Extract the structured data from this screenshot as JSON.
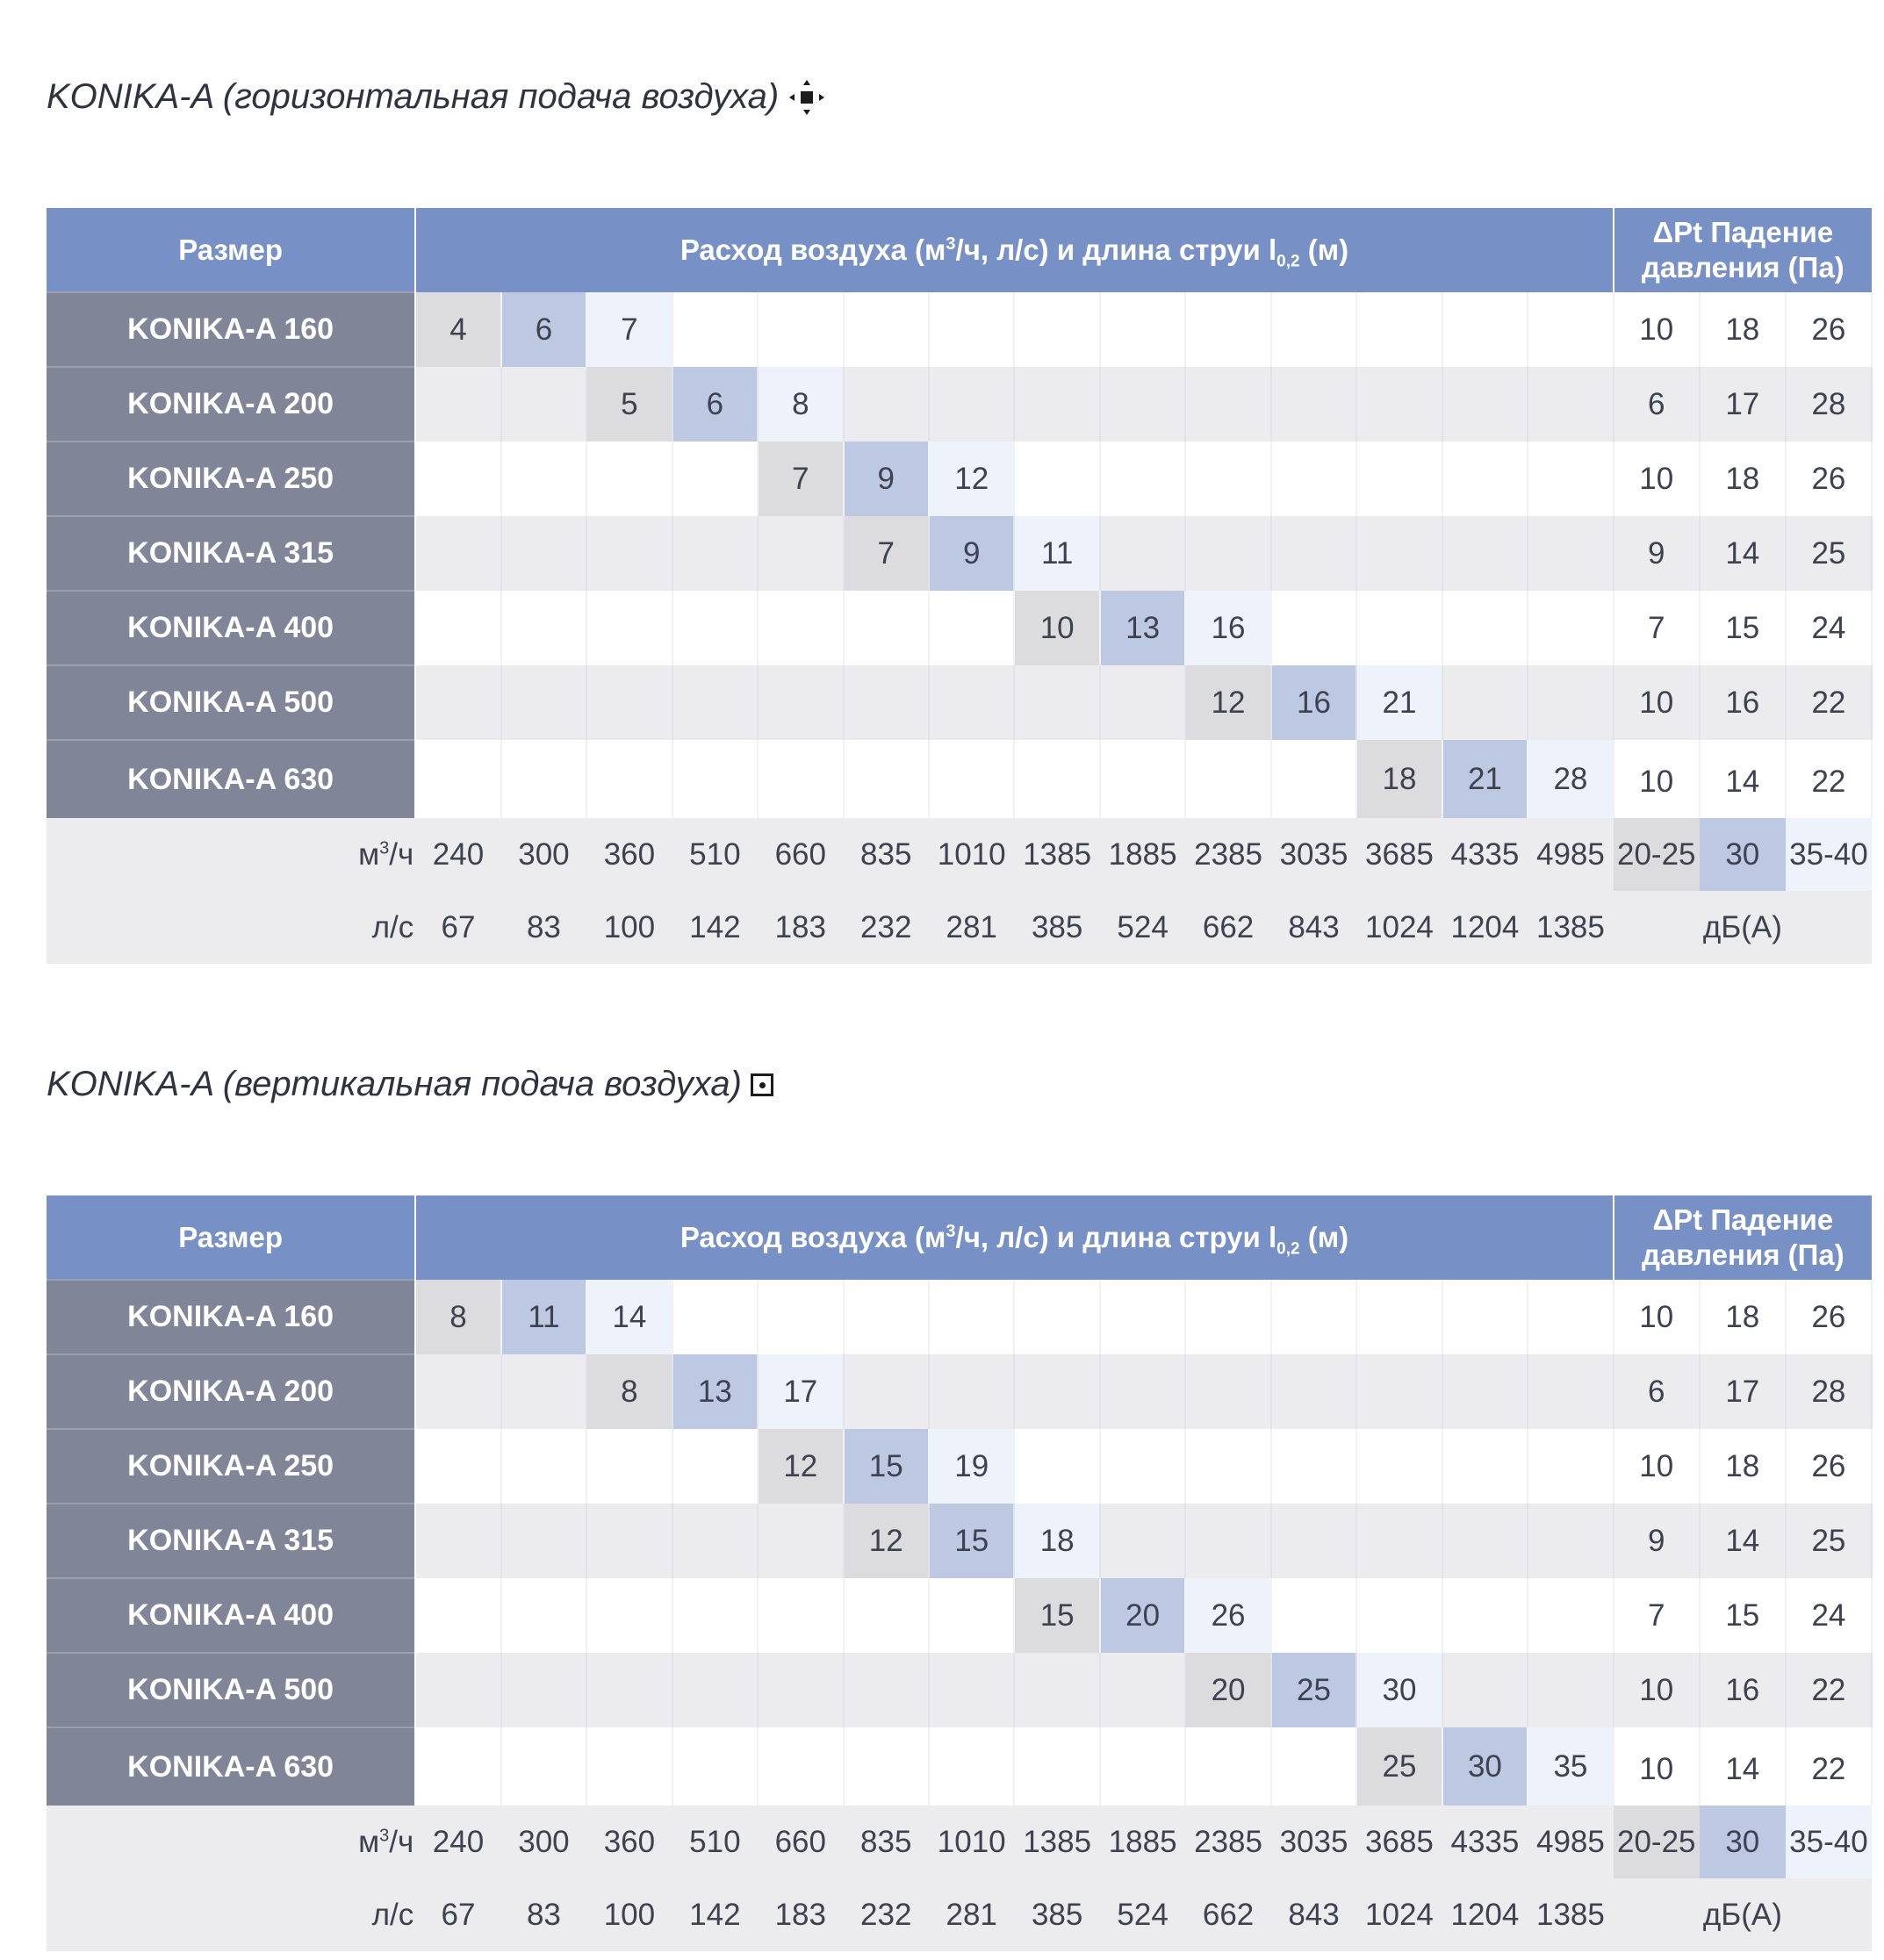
{
  "sections": [
    {
      "title": "KONIKA-A (горизонтальная подача воздуха)",
      "icon": "horizontal-supply-icon",
      "header": {
        "size": "Размер",
        "flow_pre": "Расход воздуха (м",
        "flow_sup": "3",
        "flow_mid": "/ч, л/с) и длина струи l",
        "flow_sub": "0,2",
        "flow_post": " (м)",
        "dp_line1": "ΔPt Падение",
        "dp_line2": "давления (Па)"
      },
      "rows": [
        {
          "name": "KONIKA-A 160",
          "start": 0,
          "values": [
            "4",
            "6",
            "7"
          ],
          "dp": [
            "10",
            "18",
            "26"
          ]
        },
        {
          "name": "KONIKA-A 200",
          "start": 2,
          "values": [
            "5",
            "6",
            "8"
          ],
          "dp": [
            "6",
            "17",
            "28"
          ]
        },
        {
          "name": "KONIKA-A 250",
          "start": 4,
          "values": [
            "7",
            "9",
            "12"
          ],
          "dp": [
            "10",
            "18",
            "26"
          ]
        },
        {
          "name": "KONIKA-A 315",
          "start": 5,
          "values": [
            "7",
            "9",
            "11"
          ],
          "dp": [
            "9",
            "14",
            "25"
          ]
        },
        {
          "name": "KONIKA-A 400",
          "start": 7,
          "values": [
            "10",
            "13",
            "16"
          ],
          "dp": [
            "7",
            "15",
            "24"
          ]
        },
        {
          "name": "KONIKA-A 500",
          "start": 9,
          "values": [
            "12",
            "16",
            "21"
          ],
          "dp": [
            "10",
            "16",
            "22"
          ]
        },
        {
          "name": "KONIKA-A 630",
          "start": 11,
          "values": [
            "18",
            "21",
            "28"
          ],
          "dp": [
            "10",
            "14",
            "22"
          ]
        }
      ],
      "footer": {
        "unit_m3h_pre": "м",
        "unit_m3h_sup": "3",
        "unit_m3h_post": "/ч",
        "m3h": [
          "240",
          "300",
          "360",
          "510",
          "660",
          "835",
          "1010",
          "1385",
          "1885",
          "2385",
          "3035",
          "3685",
          "4335",
          "4985"
        ],
        "unit_ls": "л/с",
        "ls": [
          "67",
          "83",
          "100",
          "142",
          "183",
          "232",
          "281",
          "385",
          "524",
          "662",
          "843",
          "1024",
          "1204",
          "1385"
        ],
        "db_levels": [
          "20-25",
          "30",
          "35-40"
        ],
        "db_unit": "дБ(А)"
      }
    },
    {
      "title": "KONIKA-A (вертикальная подача воздуха)",
      "icon": "vertical-supply-icon",
      "header": {
        "size": "Размер",
        "flow_pre": "Расход воздуха (м",
        "flow_sup": "3",
        "flow_mid": "/ч, л/с) и длина струи l",
        "flow_sub": "0,2",
        "flow_post": " (м)",
        "dp_line1": "ΔPt Падение",
        "dp_line2": "давления (Па)"
      },
      "rows": [
        {
          "name": "KONIKA-A 160",
          "start": 0,
          "values": [
            "8",
            "11",
            "14"
          ],
          "dp": [
            "10",
            "18",
            "26"
          ]
        },
        {
          "name": "KONIKA-A 200",
          "start": 2,
          "values": [
            "8",
            "13",
            "17"
          ],
          "dp": [
            "6",
            "17",
            "28"
          ]
        },
        {
          "name": "KONIKA-A 250",
          "start": 4,
          "values": [
            "12",
            "15",
            "19"
          ],
          "dp": [
            "10",
            "18",
            "26"
          ]
        },
        {
          "name": "KONIKA-A 315",
          "start": 5,
          "values": [
            "12",
            "15",
            "18"
          ],
          "dp": [
            "9",
            "14",
            "25"
          ]
        },
        {
          "name": "KONIKA-A 400",
          "start": 7,
          "values": [
            "15",
            "20",
            "26"
          ],
          "dp": [
            "7",
            "15",
            "24"
          ]
        },
        {
          "name": "KONIKA-A 500",
          "start": 9,
          "values": [
            "20",
            "25",
            "30"
          ],
          "dp": [
            "10",
            "16",
            "22"
          ]
        },
        {
          "name": "KONIKA-A 630",
          "start": 11,
          "values": [
            "25",
            "30",
            "35"
          ],
          "dp": [
            "10",
            "14",
            "22"
          ]
        }
      ],
      "footer": {
        "unit_m3h_pre": "м",
        "unit_m3h_sup": "3",
        "unit_m3h_post": "/ч",
        "m3h": [
          "240",
          "300",
          "360",
          "510",
          "660",
          "835",
          "1010",
          "1385",
          "1885",
          "2385",
          "3035",
          "3685",
          "4335",
          "4985"
        ],
        "unit_ls": "л/с",
        "ls": [
          "67",
          "83",
          "100",
          "142",
          "183",
          "232",
          "281",
          "385",
          "524",
          "662",
          "843",
          "1024",
          "1204",
          "1385"
        ],
        "db_levels": [
          "20-25",
          "30",
          "35-40"
        ],
        "db_unit": "дБ(А)"
      }
    }
  ],
  "colors": {
    "header_bg": "#7790c5",
    "name_bg": "#808698",
    "level_low": "#dcdcdf",
    "level_mid": "#bdc8e2",
    "level_high": "#eef2fb"
  }
}
